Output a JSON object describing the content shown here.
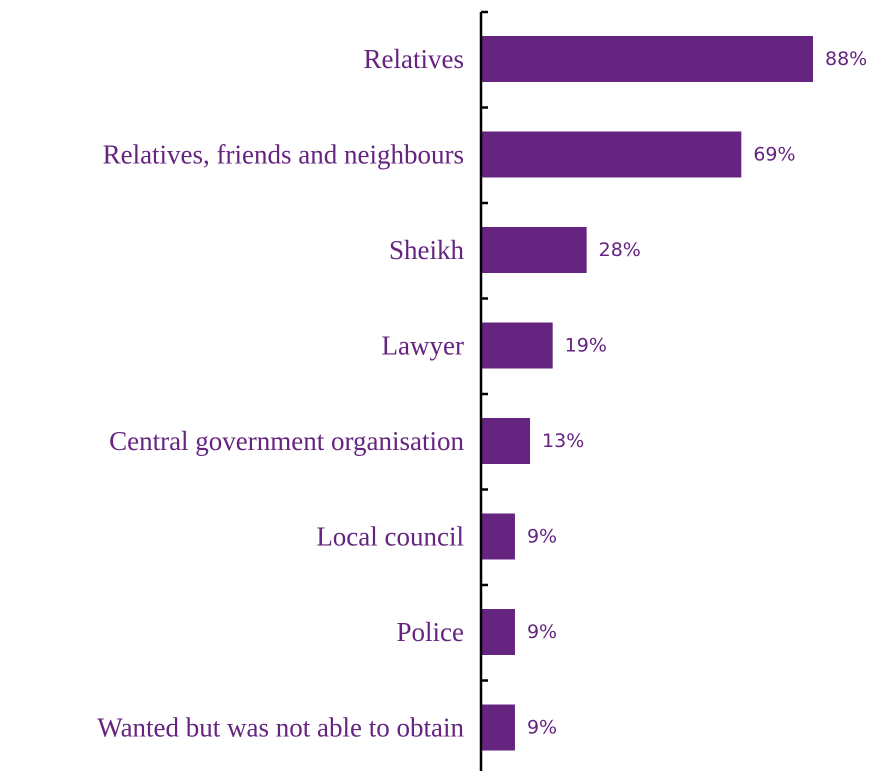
{
  "chart_data": {
    "type": "bar",
    "orientation": "horizontal",
    "categories": [
      "Relatives",
      "Relatives, friends and neighbours",
      "Sheikh",
      "Lawyer",
      "Central government organisation",
      "Local council",
      "Police",
      "Wanted but was not able to obtain"
    ],
    "values": [
      88,
      69,
      28,
      19,
      13,
      9,
      9,
      9
    ],
    "value_labels": [
      "88%",
      "69%",
      "28%",
      "19%",
      "13%",
      "9%",
      "9%",
      "9%"
    ],
    "unit": "%",
    "xlim": [
      0,
      100
    ],
    "grid": false,
    "legend": "none",
    "colors": {
      "bar": "#65247f",
      "category_text": "#65247f",
      "value_text": "#65247f",
      "axis": "#000000"
    }
  }
}
